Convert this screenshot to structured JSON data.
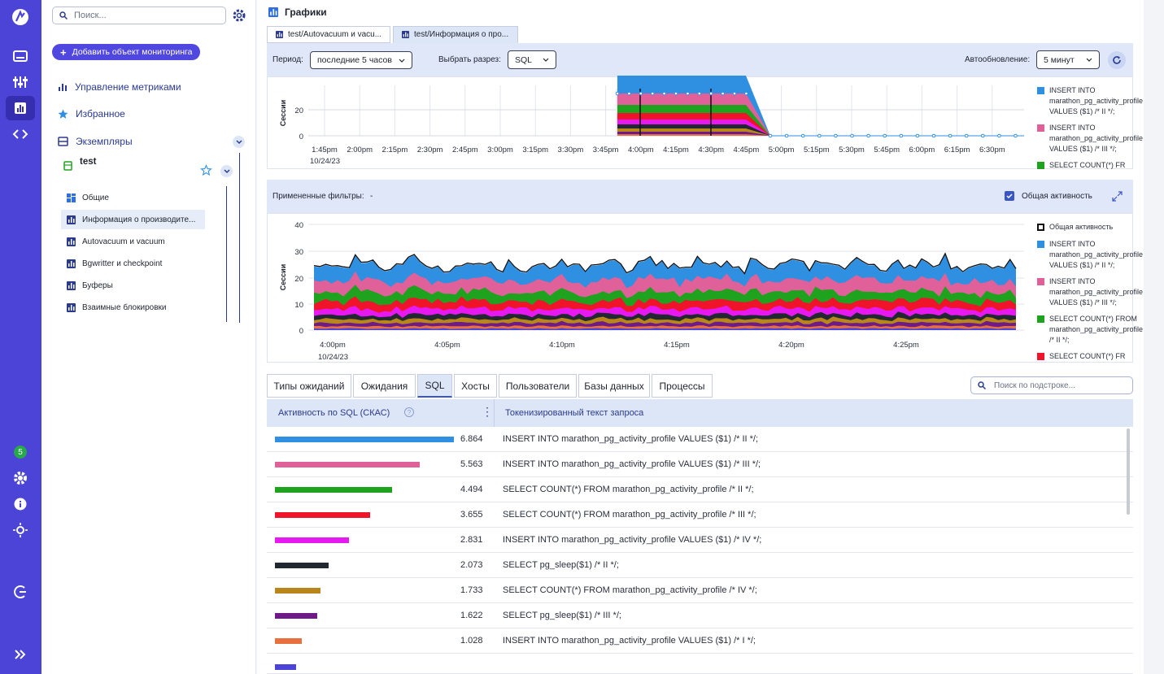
{
  "nav": {
    "search_placeholder": "Поиск...",
    "add_button": "Добавить объект мониторинга",
    "metrics": "Управление метриками",
    "favorites": "Избранное",
    "instances": "Экземпляры",
    "instance_name": "test",
    "sub_items": [
      "Общие",
      "Информация о производите...",
      "Autovacuum и vacuum",
      "Bgwritter и checkpoint",
      "Буферы",
      "Взаимные блокировки"
    ],
    "badge": "5"
  },
  "main": {
    "title": "Графики",
    "tabs": [
      "test/Autovacuum и vacu...",
      "test/Информация о про..."
    ]
  },
  "toolbar": {
    "period_label": "Период:",
    "period_value": "последние 5 часов",
    "slice_label": "Выбрать разрез:",
    "slice_value": "SQL",
    "auto_label": "Автообновление:",
    "auto_value": "5 минут"
  },
  "chart1": {
    "ylabel": "Сессии",
    "yticks": [
      "20",
      "0"
    ],
    "xticks": [
      "1:45pm",
      "2:00pm",
      "2:15pm",
      "2:30pm",
      "2:45pm",
      "3:00pm",
      "3:15pm",
      "3:30pm",
      "3:45pm",
      "4:00pm",
      "4:15pm",
      "4:30pm",
      "4:45pm",
      "5:00pm",
      "5:15pm",
      "5:30pm",
      "5:45pm",
      "6:00pm",
      "6:15pm",
      "6:30pm"
    ],
    "date": "10/24/23",
    "legend": [
      "INSERT INTO marathon_pg_activity_profile VALUES ($1) /* II */;",
      "INSERT INTO marathon_pg_activity_profile VALUES ($1) /* III */;",
      "SELECT COUNT(*) FR"
    ]
  },
  "filters": {
    "label": "Примененные фильтры:",
    "value": "-",
    "total_label": "Общая активность"
  },
  "chart2": {
    "ylabel": "Сессии",
    "yticks": [
      "40",
      "30",
      "20",
      "10",
      "0"
    ],
    "xticks": [
      "4:00pm",
      "4:05pm",
      "4:10pm",
      "4:15pm",
      "4:20pm",
      "4:25pm"
    ],
    "date": "10/24/23",
    "legend": [
      "Общая активность",
      "INSERT INTO marathon_pg_activity_profile VALUES ($1) /* II */;",
      "INSERT INTO marathon_pg_activity_profile VALUES ($1) /* III */;",
      "SELECT COUNT(*) FROM marathon_pg_activity_profile /* II */;",
      "SELECT COUNT(*) FR"
    ]
  },
  "bottom_tabs": [
    "Типы ожиданий",
    "Ожидания",
    "SQL",
    "Хосты",
    "Пользователи",
    "Базы данных",
    "Процессы"
  ],
  "table_search": "Поиск по подстроке...",
  "table": {
    "col1": "Активность по SQL (СКАС)",
    "col2": "Токенизированный текст запроса",
    "rows": [
      {
        "value": "6.864",
        "query": "INSERT INTO marathon_pg_activity_profile VALUES ($1) /* II */;",
        "color": "#2f8fe0"
      },
      {
        "value": "5.563",
        "query": "INSERT INTO marathon_pg_activity_profile VALUES ($1) /* III */;",
        "color": "#e0609a"
      },
      {
        "value": "4.494",
        "query": "SELECT COUNT(*) FROM marathon_pg_activity_profile /* II */;",
        "color": "#1fa31f"
      },
      {
        "value": "3.655",
        "query": "SELECT COUNT(*) FROM marathon_pg_activity_profile /* III */;",
        "color": "#f0142a"
      },
      {
        "value": "2.831",
        "query": "INSERT INTO marathon_pg_activity_profile VALUES ($1) /* IV */;",
        "color": "#e619f0"
      },
      {
        "value": "2.073",
        "query": "SELECT pg_sleep($1) /* II */;",
        "color": "#222831"
      },
      {
        "value": "1.733",
        "query": "SELECT COUNT(*) FROM marathon_pg_activity_profile /* IV */;",
        "color": "#b8861b"
      },
      {
        "value": "1.622",
        "query": "SELECT pg_sleep($1) /* III */;",
        "color": "#6e1a87"
      },
      {
        "value": "1.028",
        "query": "INSERT INTO marathon_pg_activity_profile VALUES ($1) /* I */;",
        "color": "#e8703e"
      }
    ]
  }
}
